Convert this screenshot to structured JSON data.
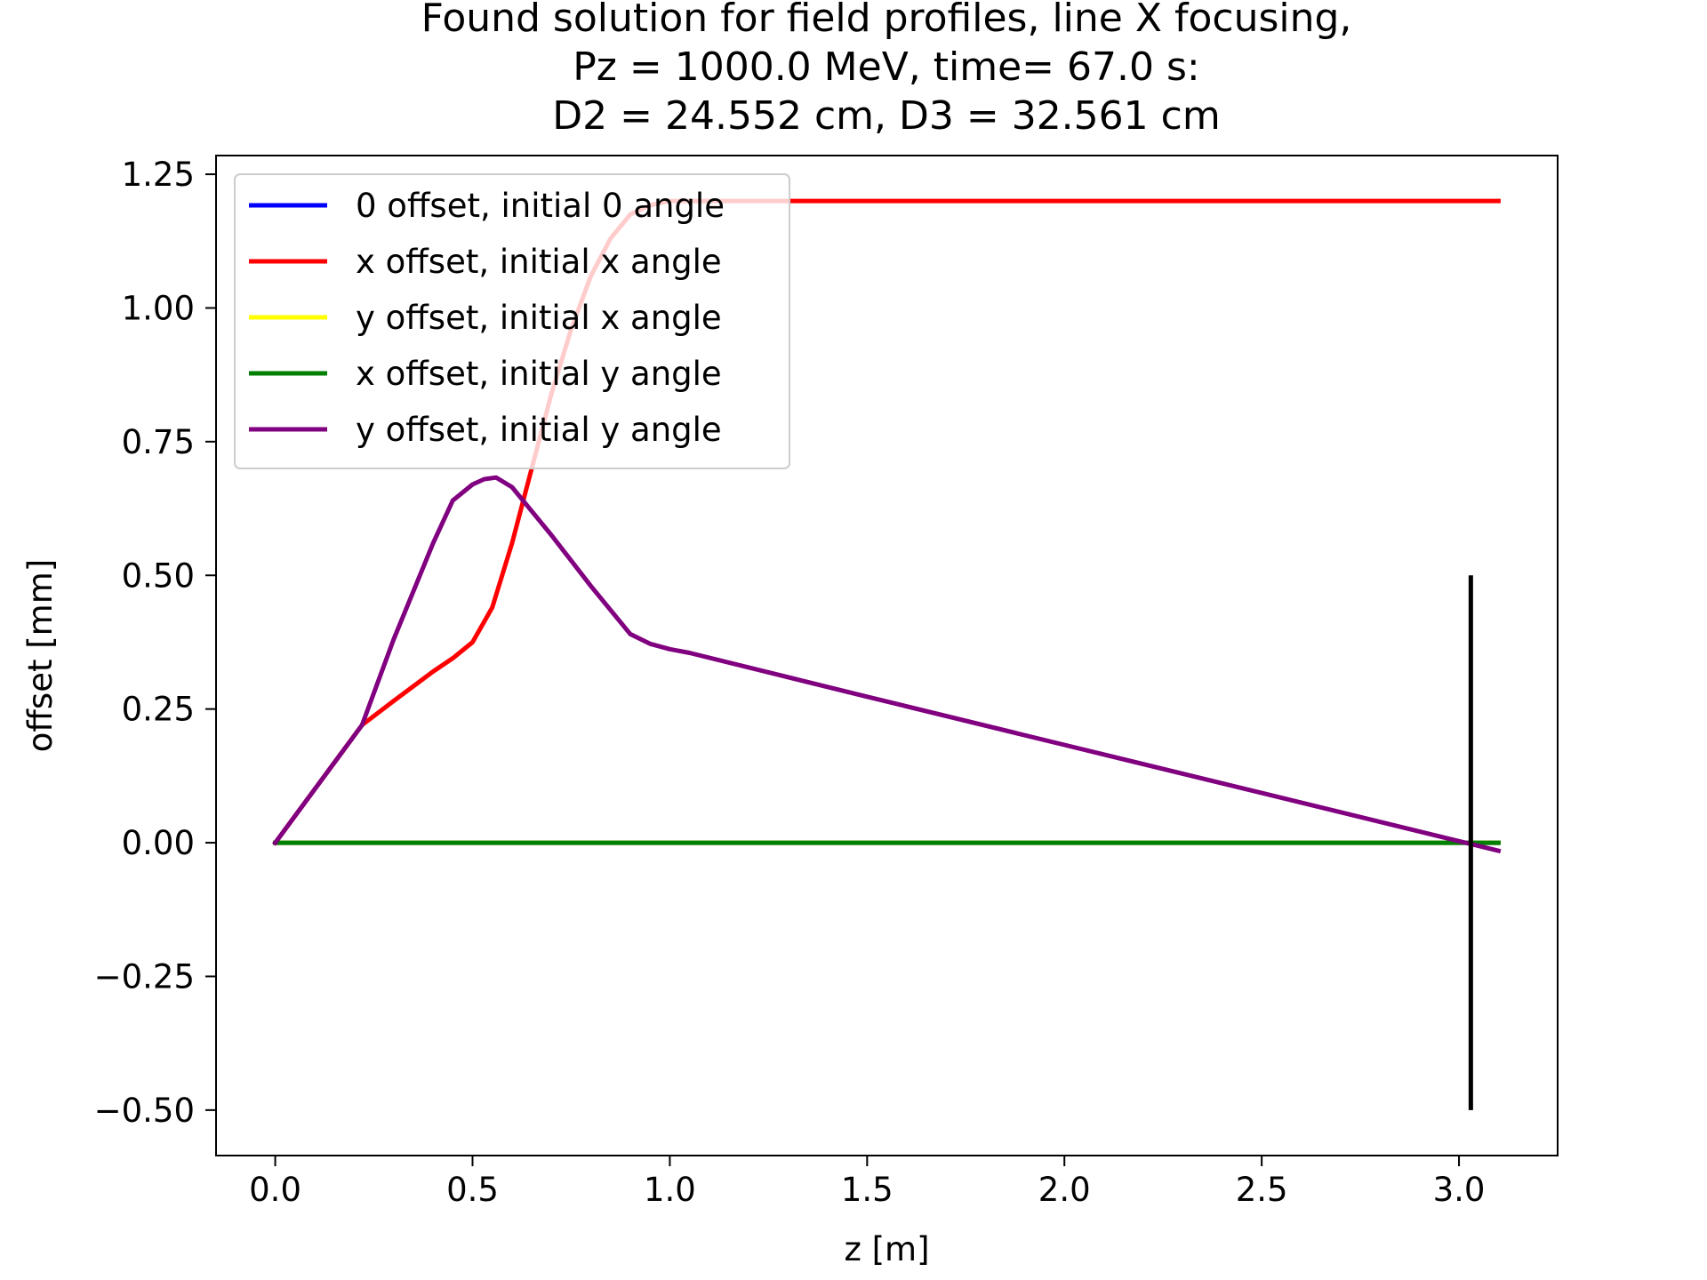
{
  "chart_data": {
    "type": "line",
    "title_lines": [
      "Found solution for field profiles, line X focusing,",
      "Pz = 1000.0 MeV, time= 67.0 s:",
      "D2 = 24.552 cm, D3 = 32.561 cm"
    ],
    "xlabel": "z [m]",
    "ylabel": "offset [mm]",
    "xlim": [
      -0.15,
      3.25
    ],
    "ylim": [
      -0.585,
      1.285
    ],
    "xticks": [
      0.0,
      0.5,
      1.0,
      1.5,
      2.0,
      2.5,
      3.0
    ],
    "xtick_labels": [
      "0.0",
      "0.5",
      "1.0",
      "1.5",
      "2.0",
      "2.5",
      "3.0"
    ],
    "yticks": [
      -0.5,
      -0.25,
      0.0,
      0.25,
      0.5,
      0.75,
      1.0,
      1.25
    ],
    "ytick_labels": [
      "−0.50",
      "−0.25",
      "0.00",
      "0.25",
      "0.50",
      "0.75",
      "1.00",
      "1.25"
    ],
    "grid": false,
    "legend_position": "top-left",
    "series": [
      {
        "name": "0 offset, initial 0 angle",
        "color": "#0000ff",
        "x": [
          0.0,
          3.1
        ],
        "y": [
          0.0,
          0.0
        ]
      },
      {
        "name": "x offset, initial x angle",
        "color": "#ff0000",
        "x": [
          0.0,
          0.22,
          0.3,
          0.4,
          0.45,
          0.5,
          0.55,
          0.6,
          0.65,
          0.7,
          0.75,
          0.8,
          0.85,
          0.9,
          0.95,
          1.0,
          1.05,
          1.1,
          1.2,
          1.5,
          2.0,
          2.5,
          3.0,
          3.1
        ],
        "y": [
          0.0,
          0.22,
          0.265,
          0.32,
          0.345,
          0.375,
          0.44,
          0.56,
          0.7,
          0.84,
          0.96,
          1.06,
          1.13,
          1.175,
          1.192,
          1.2,
          1.2,
          1.2,
          1.2,
          1.2,
          1.2,
          1.2,
          1.2,
          1.2
        ]
      },
      {
        "name": "y offset, initial x angle",
        "color": "#ffff00",
        "x": [
          0.0,
          3.1
        ],
        "y": [
          0.0,
          0.0
        ]
      },
      {
        "name": "x offset, initial y angle",
        "color": "#008000",
        "x": [
          0.0,
          3.1
        ],
        "y": [
          0.0,
          0.0
        ]
      },
      {
        "name": "y offset, initial y angle",
        "color": "#800080",
        "x": [
          0.0,
          0.22,
          0.3,
          0.4,
          0.45,
          0.5,
          0.53,
          0.56,
          0.6,
          0.65,
          0.7,
          0.8,
          0.9,
          0.95,
          1.0,
          1.05,
          1.5,
          2.0,
          2.5,
          3.0,
          3.1
        ],
        "y": [
          0.0,
          0.22,
          0.38,
          0.56,
          0.64,
          0.67,
          0.68,
          0.683,
          0.665,
          0.62,
          0.575,
          0.48,
          0.39,
          0.372,
          0.362,
          0.355,
          0.273,
          0.183,
          0.093,
          0.003,
          -0.015
        ]
      }
    ],
    "vertical_marker": {
      "x": 3.03,
      "y_range": [
        -0.5,
        0.5
      ],
      "color": "#000000"
    }
  }
}
